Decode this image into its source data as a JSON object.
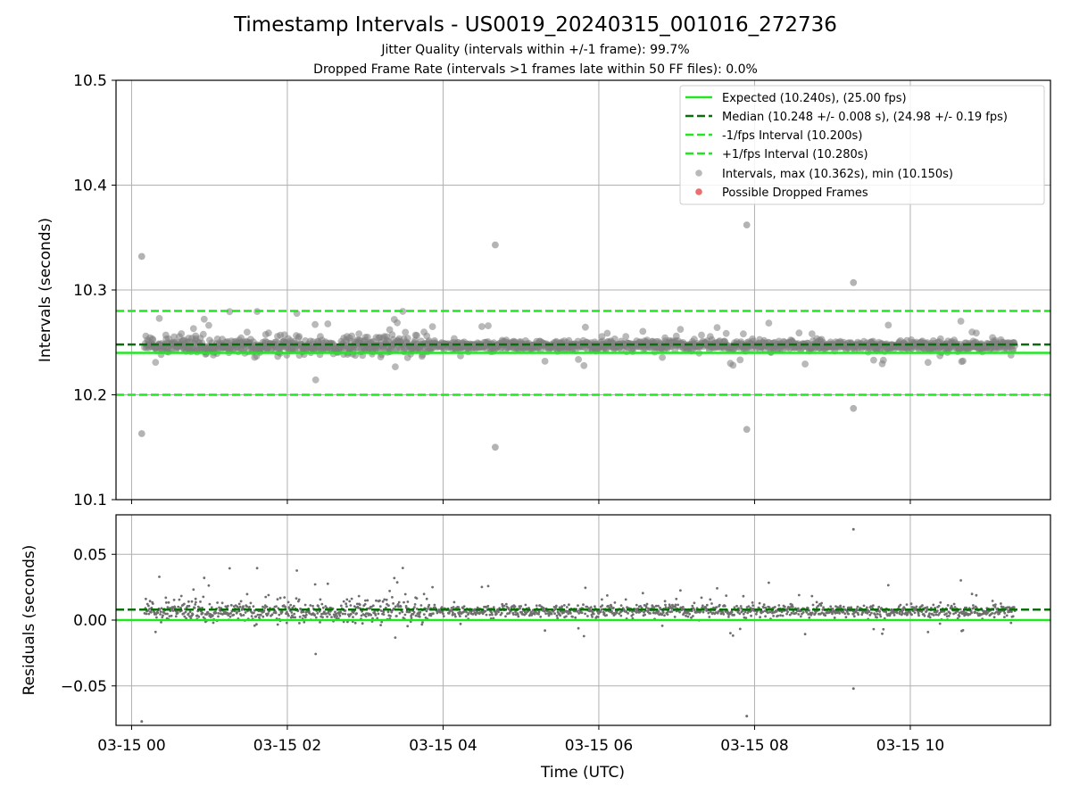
{
  "title": "Timestamp Intervals - US0019_20240315_001016_272736",
  "subtitle_1": "Jitter Quality (intervals within +/-1 frame): 99.7%",
  "subtitle_2": "Dropped Frame Rate (intervals >1 frames late within 50 FF files): 0.0%",
  "colors": {
    "expected": "#22e622",
    "median": "#0a6e0a",
    "interval_band": "#22e622",
    "points": "#808080",
    "dropped": "#e86060",
    "grid": "#b0b0b0"
  },
  "chart_data": [
    {
      "type": "scatter",
      "name": "intervals-panel",
      "ylabel": "Intervals (seconds)",
      "xlabel": "",
      "ylim": [
        10.1,
        10.5
      ],
      "y_ticks": [
        "10.1",
        "10.2",
        "10.3",
        "10.4",
        "10.5"
      ],
      "x_range_hours": [
        -0.2,
        11.8
      ],
      "grid": true,
      "legend_placement": "top-right",
      "reference_lines": [
        {
          "label": "Expected (10.240s), (25.00 fps)",
          "y": 10.24,
          "style": "solid"
        },
        {
          "label": "Median (10.248 +/- 0.008 s), (24.98 +/- 0.19 fps)",
          "y": 10.248,
          "style": "dashed-dark"
        },
        {
          "label": "-1/fps Interval (10.200s)",
          "y": 10.2,
          "style": "dashed"
        },
        {
          "label": "+1/fps Interval (10.280s)",
          "y": 10.28,
          "style": "dashed"
        }
      ],
      "point_series": [
        {
          "label": "Intervals, max (10.362s), min (10.150s)",
          "kind": "intervals"
        },
        {
          "label": "Possible Dropped Frames",
          "kind": "dropped"
        }
      ],
      "points_summary": {
        "start_time": "03-15 00:10",
        "end_time": "03-15 11:20",
        "median": 10.248,
        "max": 10.362,
        "min": 10.15
      },
      "outliers": [
        {
          "t": 0.13,
          "y": 10.332
        },
        {
          "t": 0.13,
          "y": 10.163
        },
        {
          "t": 4.67,
          "y": 10.343
        },
        {
          "t": 4.67,
          "y": 10.15
        },
        {
          "t": 7.9,
          "y": 10.362
        },
        {
          "t": 7.9,
          "y": 10.167
        },
        {
          "t": 9.27,
          "y": 10.307
        },
        {
          "t": 9.27,
          "y": 10.187
        }
      ]
    },
    {
      "type": "scatter",
      "name": "residuals-panel",
      "ylabel": "Residuals (seconds)",
      "xlabel": "Time (UTC)",
      "ylim": [
        -0.08,
        0.08
      ],
      "y_ticks": [
        "−0.05",
        "0.00",
        "0.05"
      ],
      "x_ticks": [
        "03-15 00",
        "03-15 02",
        "03-15 04",
        "03-15 06",
        "03-15 08",
        "03-15 10"
      ],
      "grid": true,
      "reference_lines": [
        {
          "label": "Expected",
          "y": 0.0,
          "style": "solid"
        },
        {
          "label": "Median",
          "y": 0.008,
          "style": "dashed-dark"
        }
      ],
      "outliers": [
        {
          "t": 0.13,
          "y": -0.077
        },
        {
          "t": 7.9,
          "y": -0.073
        },
        {
          "t": 9.27,
          "y": 0.069
        },
        {
          "t": 9.27,
          "y": -0.052
        }
      ]
    }
  ]
}
